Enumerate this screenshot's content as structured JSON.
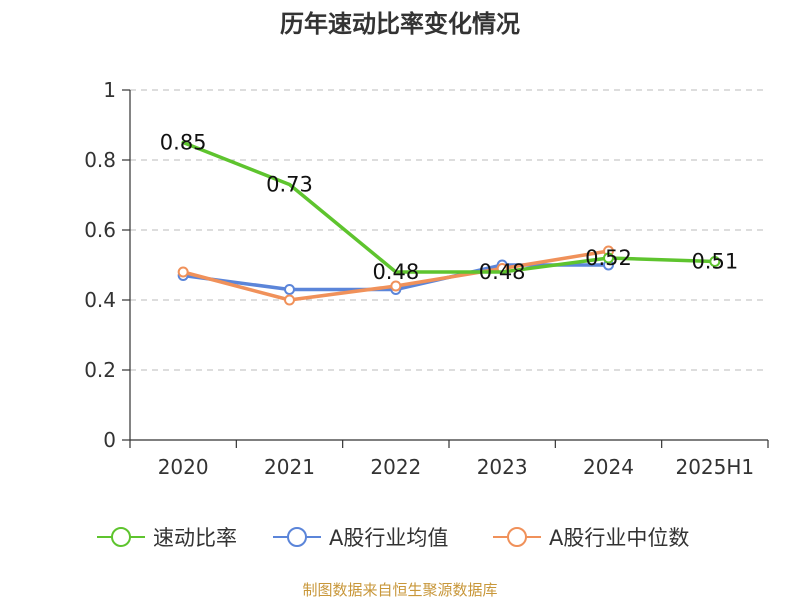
{
  "chart_data": {
    "type": "line",
    "title": "历年速动比率变化情况",
    "categories": [
      "2020",
      "2021",
      "2022",
      "2023",
      "2024",
      "2025H1"
    ],
    "ylim": [
      0,
      1
    ],
    "yticks": [
      "0",
      "0.2",
      "0.4",
      "0.6",
      "0.8",
      "1"
    ],
    "grid": true,
    "legend_position": "bottom",
    "series": [
      {
        "name": "速动比率",
        "color": "#5ec42e",
        "values": [
          0.85,
          0.73,
          0.48,
          0.48,
          0.52,
          0.51
        ],
        "labels": [
          "0.85",
          "0.73",
          "0.48",
          "0.48",
          "0.52",
          "0.51"
        ]
      },
      {
        "name": "A股行业均值",
        "color": "#5b85d9",
        "values": [
          0.47,
          0.43,
          0.43,
          0.5,
          0.5,
          null
        ]
      },
      {
        "name": "A股行业中位数",
        "color": "#f0915a",
        "values": [
          0.48,
          0.4,
          0.44,
          0.49,
          0.54,
          null
        ]
      }
    ]
  },
  "footer": {
    "source": "制图数据来自恒生聚源数据库"
  }
}
